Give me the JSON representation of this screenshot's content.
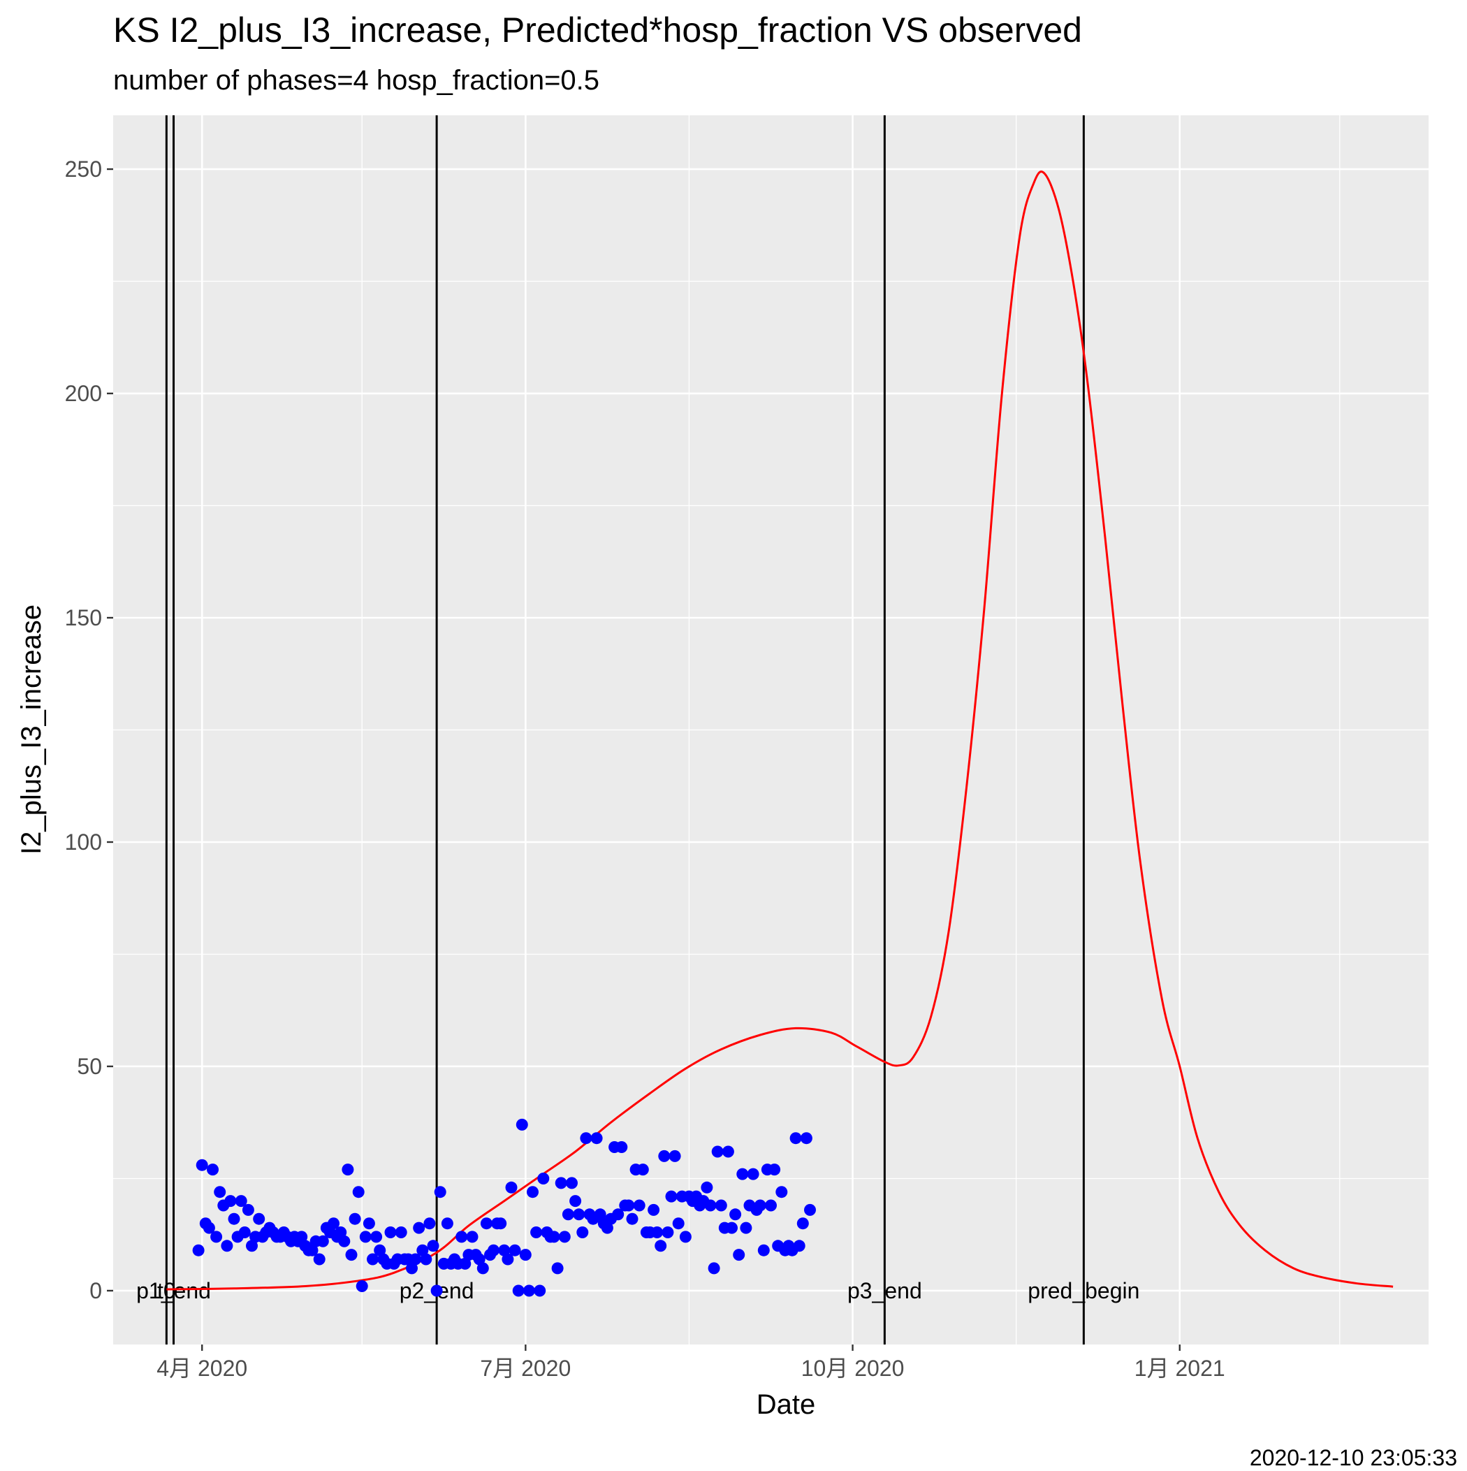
{
  "header": {
    "title": "KS I2_plus_I3_increase, Predicted*hosp_fraction VS observed",
    "subtitle": "number of phases=4   hosp_fraction=0.5"
  },
  "footer": {
    "timestamp": "2020-12-10 23:05:33"
  },
  "chart_data": {
    "type": "scatter",
    "title": "KS I2_plus_I3_increase, Predicted*hosp_fraction VS observed",
    "subtitle": "number of phases=4   hosp_fraction=0.5",
    "xlabel": "Date",
    "ylabel": "I2_plus_I3_increase",
    "xlim": [
      "2020-03-07",
      "2021-03-12"
    ],
    "ylim": [
      -12,
      262
    ],
    "grid": true,
    "x_ticks": [
      {
        "date": "2020-04-01",
        "label": "4月 2020"
      },
      {
        "date": "2020-07-01",
        "label": "7月 2020"
      },
      {
        "date": "2020-10-01",
        "label": "10月 2020"
      },
      {
        "date": "2021-01-01",
        "label": "1月 2021"
      }
    ],
    "x_minor_ticks": [
      "2020-05-16",
      "2020-08-16",
      "2020-11-16",
      "2021-02-15"
    ],
    "y_ticks": [
      0,
      50,
      100,
      150,
      200,
      250
    ],
    "vlines": [
      {
        "date": "2020-03-22",
        "label": "t0"
      },
      {
        "date": "2020-03-24",
        "label": "p1_end"
      },
      {
        "date": "2020-06-06",
        "label": "p2_end"
      },
      {
        "date": "2020-10-10",
        "label": "p3_end"
      },
      {
        "date": "2020-12-05",
        "label": "pred_begin"
      }
    ],
    "colors": {
      "observed": "#0000ff",
      "predicted": "#ff0000",
      "vline": "#000000",
      "panel": "#ebebeb",
      "grid": "#ffffff"
    },
    "series": [
      {
        "type": "line",
        "color": "#ff0000",
        "points": [
          [
            "2020-03-22",
            0.3
          ],
          [
            "2020-04-10",
            0.5
          ],
          [
            "2020-04-30",
            1.0
          ],
          [
            "2020-05-15",
            2.2
          ],
          [
            "2020-05-25",
            4.0
          ],
          [
            "2020-06-06",
            8.5
          ],
          [
            "2020-06-15",
            14.5
          ],
          [
            "2020-06-25",
            20.0
          ],
          [
            "2020-07-05",
            25.5
          ],
          [
            "2020-07-15",
            31.0
          ],
          [
            "2020-07-25",
            37.5
          ],
          [
            "2020-08-05",
            44.0
          ],
          [
            "2020-08-15",
            49.5
          ],
          [
            "2020-08-25",
            53.8
          ],
          [
            "2020-09-05",
            57.0
          ],
          [
            "2020-09-15",
            58.5
          ],
          [
            "2020-09-25",
            57.5
          ],
          [
            "2020-10-02",
            54.5
          ],
          [
            "2020-10-10",
            51.0
          ],
          [
            "2020-10-14",
            50.2
          ],
          [
            "2020-10-18",
            52.0
          ],
          [
            "2020-10-23",
            61.0
          ],
          [
            "2020-10-28",
            80.0
          ],
          [
            "2020-11-02",
            112.0
          ],
          [
            "2020-11-07",
            152.0
          ],
          [
            "2020-11-12",
            200.0
          ],
          [
            "2020-11-17",
            235.0
          ],
          [
            "2020-11-21",
            247.0
          ],
          [
            "2020-11-24",
            249.0
          ],
          [
            "2020-11-28",
            241.0
          ],
          [
            "2020-12-02",
            225.0
          ],
          [
            "2020-12-06",
            203.0
          ],
          [
            "2020-12-11",
            168.0
          ],
          [
            "2020-12-16",
            130.0
          ],
          [
            "2020-12-21",
            95.0
          ],
          [
            "2020-12-27",
            65.0
          ],
          [
            "2021-01-01",
            50.0
          ],
          [
            "2021-01-06",
            34.0
          ],
          [
            "2021-01-12",
            22.0
          ],
          [
            "2021-01-18",
            14.5
          ],
          [
            "2021-01-25",
            9.0
          ],
          [
            "2021-02-02",
            5.0
          ],
          [
            "2021-02-10",
            3.0
          ],
          [
            "2021-02-20",
            1.6
          ],
          [
            "2021-03-02",
            0.9
          ]
        ]
      },
      {
        "type": "scatter",
        "color": "#0000ff",
        "points": [
          [
            "2020-03-31",
            9
          ],
          [
            "2020-04-01",
            28
          ],
          [
            "2020-04-02",
            15
          ],
          [
            "2020-04-03",
            14
          ],
          [
            "2020-04-04",
            27
          ],
          [
            "2020-04-05",
            12
          ],
          [
            "2020-04-06",
            22
          ],
          [
            "2020-04-07",
            19
          ],
          [
            "2020-04-08",
            10
          ],
          [
            "2020-04-09",
            20
          ],
          [
            "2020-04-10",
            16
          ],
          [
            "2020-04-11",
            12
          ],
          [
            "2020-04-12",
            20
          ],
          [
            "2020-04-13",
            13
          ],
          [
            "2020-04-14",
            18
          ],
          [
            "2020-04-15",
            10
          ],
          [
            "2020-04-16",
            12
          ],
          [
            "2020-04-17",
            16
          ],
          [
            "2020-04-18",
            12
          ],
          [
            "2020-04-19",
            13
          ],
          [
            "2020-04-20",
            14
          ],
          [
            "2020-04-21",
            13
          ],
          [
            "2020-04-22",
            12
          ],
          [
            "2020-04-23",
            12
          ],
          [
            "2020-04-24",
            13
          ],
          [
            "2020-04-25",
            12
          ],
          [
            "2020-04-26",
            11
          ],
          [
            "2020-04-27",
            12
          ],
          [
            "2020-04-28",
            11
          ],
          [
            "2020-04-29",
            12
          ],
          [
            "2020-04-30",
            10
          ],
          [
            "2020-05-01",
            9
          ],
          [
            "2020-05-02",
            9
          ],
          [
            "2020-05-03",
            11
          ],
          [
            "2020-05-04",
            7
          ],
          [
            "2020-05-05",
            11
          ],
          [
            "2020-05-06",
            14
          ],
          [
            "2020-05-07",
            13
          ],
          [
            "2020-05-08",
            15
          ],
          [
            "2020-05-09",
            12
          ],
          [
            "2020-05-10",
            13
          ],
          [
            "2020-05-11",
            11
          ],
          [
            "2020-05-12",
            27
          ],
          [
            "2020-05-13",
            8
          ],
          [
            "2020-05-14",
            16
          ],
          [
            "2020-05-15",
            22
          ],
          [
            "2020-05-16",
            1
          ],
          [
            "2020-05-17",
            12
          ],
          [
            "2020-05-18",
            15
          ],
          [
            "2020-05-19",
            7
          ],
          [
            "2020-05-20",
            12
          ],
          [
            "2020-05-21",
            9
          ],
          [
            "2020-05-22",
            7
          ],
          [
            "2020-05-23",
            6
          ],
          [
            "2020-05-24",
            13
          ],
          [
            "2020-05-25",
            6
          ],
          [
            "2020-05-26",
            7
          ],
          [
            "2020-05-27",
            13
          ],
          [
            "2020-05-28",
            7
          ],
          [
            "2020-05-29",
            7
          ],
          [
            "2020-05-30",
            5
          ],
          [
            "2020-05-31",
            7
          ],
          [
            "2020-06-01",
            14
          ],
          [
            "2020-06-02",
            9
          ],
          [
            "2020-06-03",
            7
          ],
          [
            "2020-06-04",
            15
          ],
          [
            "2020-06-05",
            10
          ],
          [
            "2020-06-06",
            0
          ],
          [
            "2020-06-07",
            22
          ],
          [
            "2020-06-08",
            6
          ],
          [
            "2020-06-09",
            15
          ],
          [
            "2020-06-10",
            6
          ],
          [
            "2020-06-11",
            7
          ],
          [
            "2020-06-12",
            6
          ],
          [
            "2020-06-13",
            12
          ],
          [
            "2020-06-14",
            6
          ],
          [
            "2020-06-15",
            8
          ],
          [
            "2020-06-16",
            12
          ],
          [
            "2020-06-17",
            8
          ],
          [
            "2020-06-18",
            7
          ],
          [
            "2020-06-19",
            5
          ],
          [
            "2020-06-20",
            15
          ],
          [
            "2020-06-21",
            8
          ],
          [
            "2020-06-22",
            9
          ],
          [
            "2020-06-23",
            15
          ],
          [
            "2020-06-24",
            15
          ],
          [
            "2020-06-25",
            9
          ],
          [
            "2020-06-26",
            7
          ],
          [
            "2020-06-27",
            23
          ],
          [
            "2020-06-28",
            9
          ],
          [
            "2020-06-29",
            0
          ],
          [
            "2020-06-30",
            37
          ],
          [
            "2020-07-01",
            8
          ],
          [
            "2020-07-02",
            0
          ],
          [
            "2020-07-03",
            22
          ],
          [
            "2020-07-04",
            13
          ],
          [
            "2020-07-05",
            0
          ],
          [
            "2020-07-06",
            25
          ],
          [
            "2020-07-07",
            13
          ],
          [
            "2020-07-08",
            12
          ],
          [
            "2020-07-09",
            12
          ],
          [
            "2020-07-10",
            5
          ],
          [
            "2020-07-11",
            24
          ],
          [
            "2020-07-12",
            12
          ],
          [
            "2020-07-13",
            17
          ],
          [
            "2020-07-14",
            24
          ],
          [
            "2020-07-15",
            20
          ],
          [
            "2020-07-16",
            17
          ],
          [
            "2020-07-17",
            13
          ],
          [
            "2020-07-18",
            34
          ],
          [
            "2020-07-19",
            17
          ],
          [
            "2020-07-20",
            16
          ],
          [
            "2020-07-21",
            34
          ],
          [
            "2020-07-22",
            17
          ],
          [
            "2020-07-23",
            15
          ],
          [
            "2020-07-24",
            14
          ],
          [
            "2020-07-25",
            16
          ],
          [
            "2020-07-26",
            32
          ],
          [
            "2020-07-27",
            17
          ],
          [
            "2020-07-28",
            32
          ],
          [
            "2020-07-29",
            19
          ],
          [
            "2020-07-30",
            19
          ],
          [
            "2020-07-31",
            16
          ],
          [
            "2020-08-01",
            27
          ],
          [
            "2020-08-02",
            19
          ],
          [
            "2020-08-03",
            27
          ],
          [
            "2020-08-04",
            13
          ],
          [
            "2020-08-05",
            13
          ],
          [
            "2020-08-06",
            18
          ],
          [
            "2020-08-07",
            13
          ],
          [
            "2020-08-08",
            10
          ],
          [
            "2020-08-09",
            30
          ],
          [
            "2020-08-10",
            13
          ],
          [
            "2020-08-11",
            21
          ],
          [
            "2020-08-12",
            30
          ],
          [
            "2020-08-13",
            15
          ],
          [
            "2020-08-14",
            21
          ],
          [
            "2020-08-15",
            12
          ],
          [
            "2020-08-16",
            21
          ],
          [
            "2020-08-17",
            20
          ],
          [
            "2020-08-18",
            21
          ],
          [
            "2020-08-19",
            19
          ],
          [
            "2020-08-20",
            20
          ],
          [
            "2020-08-21",
            23
          ],
          [
            "2020-08-22",
            19
          ],
          [
            "2020-08-23",
            5
          ],
          [
            "2020-08-24",
            31
          ],
          [
            "2020-08-25",
            19
          ],
          [
            "2020-08-26",
            14
          ],
          [
            "2020-08-27",
            31
          ],
          [
            "2020-08-28",
            14
          ],
          [
            "2020-08-29",
            17
          ],
          [
            "2020-08-30",
            8
          ],
          [
            "2020-08-31",
            26
          ],
          [
            "2020-09-01",
            14
          ],
          [
            "2020-09-02",
            19
          ],
          [
            "2020-09-03",
            26
          ],
          [
            "2020-09-04",
            18
          ],
          [
            "2020-09-05",
            19
          ],
          [
            "2020-09-06",
            9
          ],
          [
            "2020-09-07",
            27
          ],
          [
            "2020-09-08",
            19
          ],
          [
            "2020-09-09",
            27
          ],
          [
            "2020-09-10",
            10
          ],
          [
            "2020-09-11",
            22
          ],
          [
            "2020-09-12",
            9
          ],
          [
            "2020-09-13",
            10
          ],
          [
            "2020-09-14",
            9
          ],
          [
            "2020-09-15",
            34
          ],
          [
            "2020-09-16",
            10
          ],
          [
            "2020-09-17",
            15
          ],
          [
            "2020-09-18",
            34
          ],
          [
            "2020-09-19",
            18
          ]
        ]
      }
    ]
  }
}
